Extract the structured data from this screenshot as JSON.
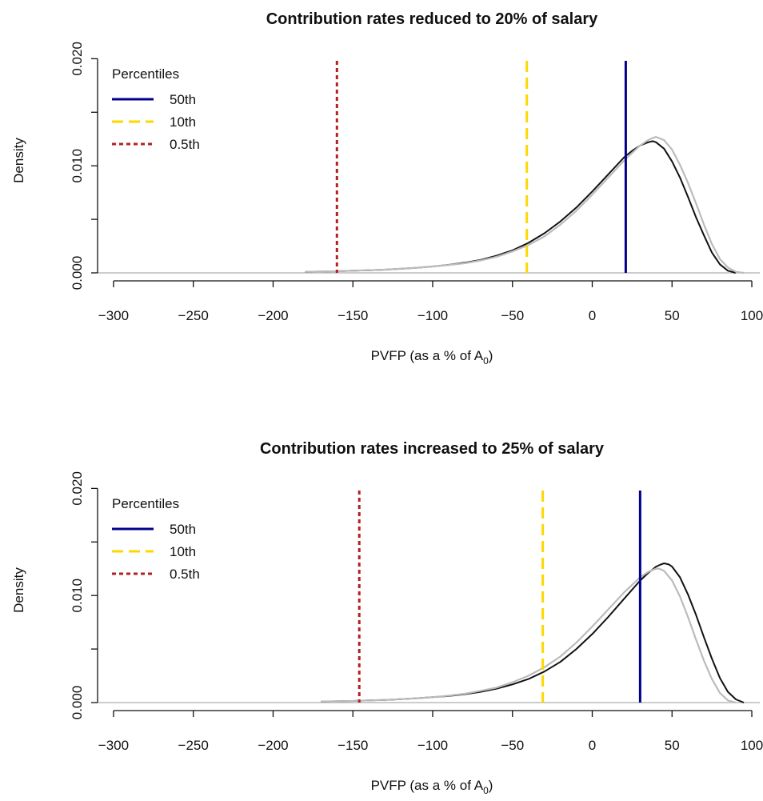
{
  "chart_data": [
    {
      "type": "line",
      "title": "Contribution rates reduced to 20% of salary",
      "xlabel": "PVFP (as a % of A",
      "xlabel_subscript": "0",
      "xlabel_suffix": ")",
      "ylabel": "Density",
      "xlim": [
        -310,
        105
      ],
      "ylim": [
        0,
        0.021
      ],
      "x_ticks": [
        -300,
        -250,
        -200,
        -150,
        -100,
        -50,
        0,
        50,
        100
      ],
      "x_tick_labels": [
        "−300",
        "−250",
        "−200",
        "−150",
        "−100",
        "−50",
        "0",
        "50",
        "100"
      ],
      "y_ticks": [
        0,
        0.005,
        0.01,
        0.015,
        0.02
      ],
      "y_tick_labels": [
        "0.000",
        "",
        "0.010",
        "",
        "0.020"
      ],
      "series": [
        {
          "color": "#111111",
          "x": [
            -180,
            -170,
            -160,
            -150,
            -140,
            -130,
            -120,
            -110,
            -100,
            -90,
            -80,
            -70,
            -60,
            -50,
            -40,
            -30,
            -20,
            -10,
            0,
            10,
            20,
            25,
            30,
            35,
            38,
            40,
            45,
            50,
            55,
            60,
            65,
            70,
            75,
            80,
            85,
            90
          ],
          "y": [
            0.0001,
            0.00012,
            0.00015,
            0.0002,
            0.00025,
            0.0003,
            0.00038,
            0.00048,
            0.0006,
            0.00075,
            0.00095,
            0.0012,
            0.0016,
            0.0021,
            0.0028,
            0.0037,
            0.0048,
            0.0061,
            0.0076,
            0.0092,
            0.0108,
            0.0114,
            0.0119,
            0.0122,
            0.0123,
            0.0122,
            0.0116,
            0.0104,
            0.0089,
            0.0071,
            0.0052,
            0.0035,
            0.0019,
            0.0008,
            0.0002,
            0.0
          ]
        },
        {
          "color": "#bbbbbb",
          "x": [
            -180,
            -170,
            -160,
            -150,
            -140,
            -130,
            -120,
            -110,
            -100,
            -90,
            -80,
            -70,
            -60,
            -50,
            -40,
            -30,
            -20,
            -10,
            0,
            10,
            20,
            25,
            30,
            35,
            38,
            40,
            45,
            50,
            55,
            60,
            65,
            70,
            75,
            80,
            85,
            90,
            95
          ],
          "y": [
            0.0001,
            0.00012,
            0.00015,
            0.0002,
            0.00025,
            0.0003,
            0.00038,
            0.00048,
            0.0006,
            0.00073,
            0.0009,
            0.00115,
            0.0015,
            0.002,
            0.0026,
            0.0034,
            0.0045,
            0.0058,
            0.0073,
            0.0089,
            0.0105,
            0.0112,
            0.0119,
            0.0124,
            0.0126,
            0.0127,
            0.0124,
            0.0115,
            0.0101,
            0.0084,
            0.0065,
            0.0045,
            0.0027,
            0.0013,
            0.0005,
            0.0001,
            0.0
          ]
        }
      ],
      "vlines": [
        {
          "label": "50th",
          "x": 21,
          "color": "#00008b",
          "dash": "solid"
        },
        {
          "label": "10th",
          "x": -41,
          "color": "#ffd700",
          "dash": "dashed"
        },
        {
          "label": "0.5th",
          "x": -160,
          "color": "#b22222",
          "dash": "dotted"
        }
      ],
      "legend": {
        "title": "Percentiles",
        "placement": "top-left",
        "items": [
          {
            "label": "50th",
            "color": "#00008b",
            "dash": "solid"
          },
          {
            "label": "10th",
            "color": "#ffd700",
            "dash": "dashed"
          },
          {
            "label": "0.5th",
            "color": "#b22222",
            "dash": "dotted"
          }
        ]
      }
    },
    {
      "type": "line",
      "title": "Contribution rates increased to 25% of salary",
      "xlabel": "PVFP (as a % of A",
      "xlabel_subscript": "0",
      "xlabel_suffix": ")",
      "ylabel": "Density",
      "xlim": [
        -310,
        105
      ],
      "ylim": [
        0,
        0.021
      ],
      "x_ticks": [
        -300,
        -250,
        -200,
        -150,
        -100,
        -50,
        0,
        50,
        100
      ],
      "x_tick_labels": [
        "−300",
        "−250",
        "−200",
        "−150",
        "−100",
        "−50",
        "0",
        "50",
        "100"
      ],
      "y_ticks": [
        0,
        0.005,
        0.01,
        0.015,
        0.02
      ],
      "y_tick_labels": [
        "0.000",
        "",
        "0.010",
        "",
        "0.020"
      ],
      "series": [
        {
          "color": "#111111",
          "x": [
            -170,
            -160,
            -150,
            -140,
            -130,
            -120,
            -110,
            -100,
            -90,
            -80,
            -70,
            -60,
            -50,
            -40,
            -30,
            -20,
            -10,
            0,
            10,
            20,
            30,
            35,
            40,
            43,
            45,
            48,
            50,
            55,
            60,
            65,
            70,
            75,
            80,
            85,
            90,
            95
          ],
          "y": [
            0.0001,
            0.00012,
            0.00015,
            0.0002,
            0.00025,
            0.00032,
            0.0004,
            0.0005,
            0.00062,
            0.00078,
            0.001,
            0.0013,
            0.0017,
            0.0022,
            0.0029,
            0.0038,
            0.005,
            0.0064,
            0.008,
            0.0097,
            0.0114,
            0.0121,
            0.0127,
            0.0129,
            0.013,
            0.0129,
            0.0127,
            0.0117,
            0.0101,
            0.0082,
            0.0061,
            0.0041,
            0.0023,
            0.001,
            0.0003,
            0.0
          ]
        },
        {
          "color": "#bbbbbb",
          "x": [
            -170,
            -160,
            -150,
            -140,
            -130,
            -120,
            -110,
            -100,
            -90,
            -80,
            -70,
            -60,
            -50,
            -40,
            -30,
            -20,
            -10,
            0,
            10,
            20,
            30,
            35,
            38,
            40,
            42,
            45,
            50,
            55,
            60,
            65,
            70,
            75,
            80,
            85,
            90
          ],
          "y": [
            0.0001,
            0.00012,
            0.00015,
            0.0002,
            0.00025,
            0.00032,
            0.0004,
            0.0005,
            0.00065,
            0.00082,
            0.0011,
            0.0014,
            0.0019,
            0.0025,
            0.0033,
            0.0043,
            0.0056,
            0.0071,
            0.0087,
            0.0103,
            0.0117,
            0.0122,
            0.0124,
            0.0125,
            0.0125,
            0.0123,
            0.0114,
            0.0099,
            0.008,
            0.0059,
            0.0039,
            0.0022,
            0.0009,
            0.0002,
            0.0
          ]
        }
      ],
      "vlines": [
        {
          "label": "50th",
          "x": 30,
          "color": "#00008b",
          "dash": "solid"
        },
        {
          "label": "10th",
          "x": -31,
          "color": "#ffd700",
          "dash": "dashed"
        },
        {
          "label": "0.5th",
          "x": -146,
          "color": "#b22222",
          "dash": "dotted"
        }
      ],
      "legend": {
        "title": "Percentiles",
        "placement": "top-left",
        "items": [
          {
            "label": "50th",
            "color": "#00008b",
            "dash": "solid"
          },
          {
            "label": "10th",
            "color": "#ffd700",
            "dash": "dashed"
          },
          {
            "label": "0.5th",
            "color": "#b22222",
            "dash": "dotted"
          }
        ]
      }
    }
  ]
}
